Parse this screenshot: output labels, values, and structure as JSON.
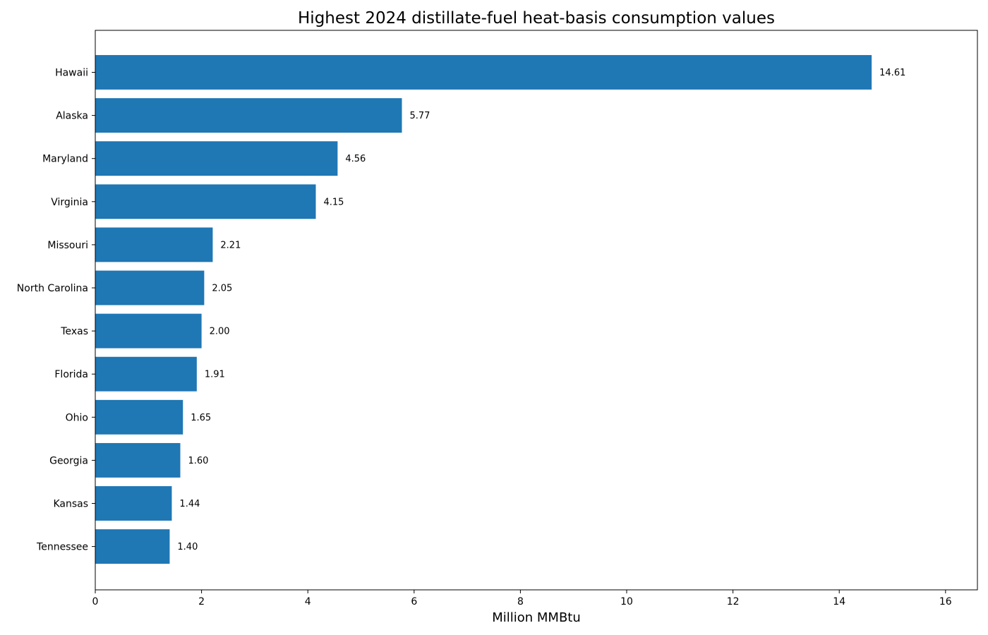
{
  "chart_data": {
    "type": "bar",
    "orientation": "horizontal",
    "title": "Highest 2024 distillate-fuel heat-basis consumption values",
    "xlabel": "Million MMBtu",
    "ylabel": "",
    "xlim": [
      0,
      16.6
    ],
    "x_ticks": [
      0,
      2,
      4,
      6,
      8,
      10,
      12,
      14,
      16
    ],
    "x_tick_labels": [
      "0",
      "2",
      "4",
      "6",
      "8",
      "10",
      "12",
      "14",
      "16"
    ],
    "grid": false,
    "legend": "none",
    "categories": [
      "Hawaii",
      "Alaska",
      "Maryland",
      "Virginia",
      "Missouri",
      "North Carolina",
      "Texas",
      "Florida",
      "Ohio",
      "Georgia",
      "Kansas",
      "Tennessee"
    ],
    "values": [
      14.61,
      5.77,
      4.56,
      4.15,
      2.21,
      2.05,
      2.0,
      1.91,
      1.65,
      1.6,
      1.44,
      1.4
    ],
    "value_labels": [
      "14.61",
      "5.77",
      "4.56",
      "4.15",
      "2.21",
      "2.05",
      "2.00",
      "1.91",
      "1.65",
      "1.60",
      "1.44",
      "1.40"
    ],
    "bar_color": "#1f77b4"
  }
}
